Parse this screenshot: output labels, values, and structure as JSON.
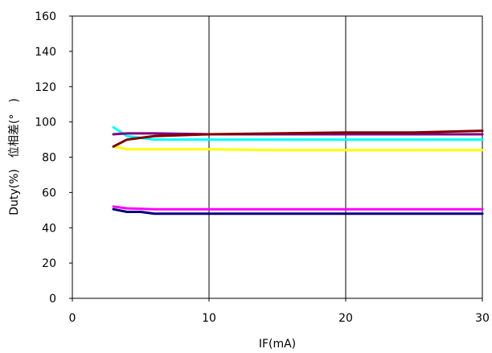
{
  "chart_data": {
    "type": "line",
    "title": "",
    "xlabel": "IF(mA)",
    "ylabel": "Duty(%)　位相差(°　)",
    "xlim": [
      0,
      30
    ],
    "ylim": [
      0,
      160
    ],
    "xticks": [
      0,
      10,
      20,
      30
    ],
    "yticks": [
      0,
      20,
      40,
      60,
      80,
      100,
      120,
      140,
      160
    ],
    "grid": "vertical",
    "legend": "none",
    "series": [
      {
        "color": "#00ffff",
        "x": [
          3,
          4,
          6,
          10,
          15,
          20,
          25,
          30
        ],
        "y": [
          97,
          92,
          90,
          90,
          90,
          90,
          90,
          90
        ]
      },
      {
        "color": "#ffff00",
        "x": [
          3,
          4,
          6,
          10,
          15,
          20,
          25,
          30
        ],
        "y": [
          86,
          84.5,
          84.5,
          84.5,
          84,
          84,
          84,
          84
        ]
      },
      {
        "color": "#800080",
        "x": [
          3,
          4,
          6,
          10,
          15,
          20,
          25,
          30
        ],
        "y": [
          93,
          93.5,
          93.5,
          93,
          93,
          93,
          93,
          93
        ]
      },
      {
        "color": "#800000",
        "x": [
          3,
          4,
          6,
          10,
          15,
          20,
          25,
          30
        ],
        "y": [
          86,
          90,
          92,
          93,
          93.5,
          94,
          94,
          95
        ]
      },
      {
        "color": "#ff00ff",
        "x": [
          3,
          4,
          6,
          10,
          15,
          20,
          25,
          30
        ],
        "y": [
          52,
          51,
          50.5,
          50.5,
          50.5,
          50.5,
          50.5,
          50.5
        ]
      },
      {
        "color": "#000080",
        "x": [
          3,
          4,
          5,
          6,
          10,
          15,
          20,
          25,
          30
        ],
        "y": [
          50.5,
          49,
          49,
          48,
          48,
          48,
          48,
          48,
          48
        ]
      }
    ]
  }
}
